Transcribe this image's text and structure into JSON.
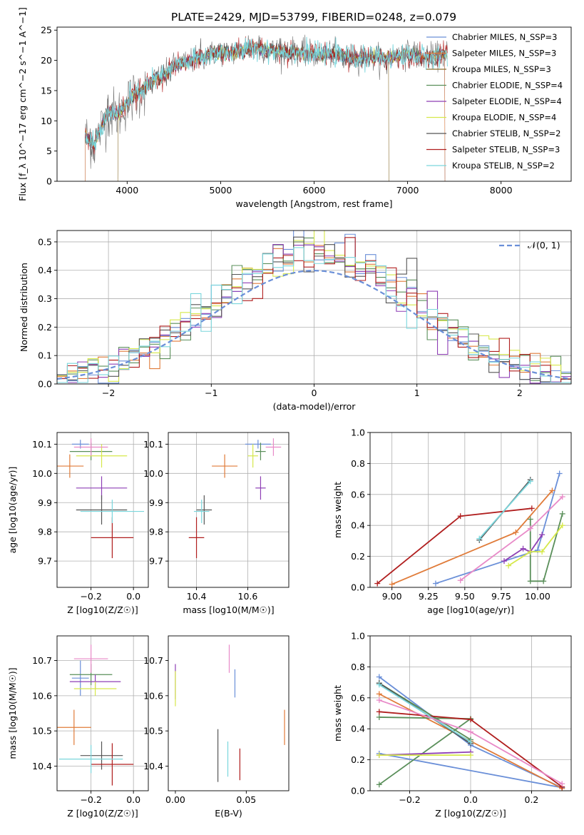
{
  "figure_title": "PLATE=2429, MJD=53799, FIBERID=0248, z=0.079",
  "model_colors": {
    "Chabrier MILES": "#6a8fd8",
    "Salpeter MILES": "#e07b39",
    "Kroupa MILES": "#8a6d2e",
    "Chabrier ELODIE": "#5a8f5a",
    "Salpeter ELODIE": "#8e3fb5",
    "Kroupa ELODIE": "#d6e84a",
    "Chabrier STELIB": "#555555",
    "Salpeter STELIB": "#b01e1e",
    "Kroupa STELIB": "#7ad6dc",
    "Pink": "#e88ac8"
  },
  "chart_data": [
    {
      "id": "spectrum",
      "type": "line",
      "xlabel": "wavelength [Angstrom, rest frame]",
      "ylabel": "Flux [f_λ 10^−17 erg cm^−2 s^−1 A^−1]",
      "xlim": [
        3250,
        8750
      ],
      "ylim": [
        0,
        25.5
      ],
      "xticks": [
        4000,
        5000,
        6000,
        7000,
        8000
      ],
      "yticks": [
        0,
        5,
        10,
        15,
        20,
        25
      ],
      "grid": false,
      "legend_position": "right",
      "continuum_x": [
        3550,
        3650,
        3700,
        3800,
        3900,
        4000,
        4100,
        4200,
        4300,
        4400,
        4500,
        4600,
        4700,
        4800,
        4900,
        5000,
        5100,
        5200,
        5300,
        5400,
        5600,
        5800,
        6000,
        6200,
        6400,
        6600,
        6800,
        7000,
        7200,
        7400
      ],
      "continuum_y": [
        7.5,
        6.0,
        8.0,
        11.5,
        11.0,
        13.0,
        14.5,
        15.5,
        17.0,
        17.5,
        19.0,
        19.5,
        20.0,
        20.5,
        21.0,
        21.5,
        21.0,
        21.5,
        22.0,
        22.0,
        21.5,
        21.5,
        21.0,
        21.0,
        20.5,
        20.5,
        20.5,
        21.0,
        20.5,
        21.0
      ],
      "legend": [
        {
          "label": "Chabrier MILES, N_SSP=3",
          "color_key": "Chabrier MILES"
        },
        {
          "label": "Salpeter MILES, N_SSP=3",
          "color_key": "Salpeter MILES"
        },
        {
          "label": "Kroupa MILES, N_SSP=3",
          "color_key": "Kroupa MILES"
        },
        {
          "label": "Chabrier ELODIE, N_SSP=4",
          "color_key": "Chabrier ELODIE"
        },
        {
          "label": "Salpeter ELODIE, N_SSP=4",
          "color_key": "Salpeter ELODIE"
        },
        {
          "label": "Kroupa ELODIE, N_SSP=4",
          "color_key": "Kroupa ELODIE"
        },
        {
          "label": "Chabrier STELIB, N_SSP=2",
          "color_key": "Chabrier STELIB"
        },
        {
          "label": "Salpeter STELIB, N_SSP=3",
          "color_key": "Salpeter STELIB"
        },
        {
          "label": "Kroupa STELIB, N_SSP=2",
          "color_key": "Kroupa STELIB"
        }
      ]
    },
    {
      "id": "residuals",
      "type": "line",
      "xlabel": "(data-model)/error",
      "ylabel": "Normed distribution",
      "xlim": [
        -2.5,
        2.5
      ],
      "ylim": [
        0,
        0.54
      ],
      "xticks": [
        -2,
        -1,
        0,
        1,
        2
      ],
      "yticks": [
        0.0,
        0.1,
        0.2,
        0.3,
        0.4,
        0.5
      ],
      "grid": true,
      "legend_position": "top-right",
      "legend_label": "𝒩(0, 1)",
      "bin_width": 0.1,
      "bin_start": -2.5
    },
    {
      "id": "age_vs_Z",
      "type": "scatter",
      "xlabel": "Z [log10(Z/Z☉)]",
      "ylabel": "age  [log10(age/yr)]",
      "xlim": [
        -0.36,
        0.07
      ],
      "ylim": [
        9.61,
        10.14
      ],
      "xticks": [
        -0.2,
        0.0
      ],
      "yticks": [
        9.7,
        9.8,
        9.9,
        10.0,
        10.1
      ],
      "grid": true,
      "points": [
        {
          "color_key": "Chabrier MILES",
          "x": -0.25,
          "xerr": 0.04,
          "y": 10.1,
          "yerr": 0.015
        },
        {
          "color_key": "Salpeter MILES",
          "x": -0.3,
          "xerr": 0.065,
          "y": 10.025,
          "yerr": 0.04
        },
        {
          "color_key": "Chabrier ELODIE",
          "x": -0.2,
          "xerr": 0.1,
          "y": 10.075,
          "yerr": 0.03
        },
        {
          "color_key": "Salpeter ELODIE",
          "x": -0.15,
          "xerr": 0.12,
          "y": 9.95,
          "yerr": 0.04
        },
        {
          "color_key": "Kroupa ELODIE",
          "x": -0.15,
          "xerr": 0.12,
          "y": 10.06,
          "yerr": 0.04
        },
        {
          "color_key": "Chabrier STELIB",
          "x": -0.15,
          "xerr": 0.12,
          "y": 9.875,
          "yerr": 0.05
        },
        {
          "color_key": "Salpeter STELIB",
          "x": -0.1,
          "xerr": 0.1,
          "y": 9.78,
          "yerr": 0.07
        },
        {
          "color_key": "Kroupa STELIB",
          "x": -0.1,
          "xerr": 0.15,
          "y": 9.87,
          "yerr": 0.04
        },
        {
          "color_key": "Pink",
          "x": -0.2,
          "xerr": 0.08,
          "y": 10.09,
          "yerr": 0.03
        }
      ]
    },
    {
      "id": "age_vs_mass",
      "type": "scatter",
      "xlabel": "mass [log10(M/M☉)]",
      "ylabel": "",
      "xlim": [
        10.29,
        10.76
      ],
      "ylim": [
        9.61,
        10.14
      ],
      "xticks": [
        10.4,
        10.6
      ],
      "yticks": [
        9.7,
        9.8,
        9.9,
        10.0,
        10.1
      ],
      "grid": true,
      "points": [
        {
          "color_key": "Chabrier MILES",
          "x": 10.64,
          "xerr": 0.05,
          "y": 10.1,
          "yerr": 0.015
        },
        {
          "color_key": "Salpeter MILES",
          "x": 10.51,
          "xerr": 0.05,
          "y": 10.025,
          "yerr": 0.04
        },
        {
          "color_key": "Chabrier ELODIE",
          "x": 10.65,
          "xerr": 0.02,
          "y": 10.075,
          "yerr": 0.03
        },
        {
          "color_key": "Salpeter ELODIE",
          "x": 10.65,
          "xerr": 0.02,
          "y": 9.95,
          "yerr": 0.04
        },
        {
          "color_key": "Kroupa ELODIE",
          "x": 10.62,
          "xerr": 0.02,
          "y": 10.06,
          "yerr": 0.04
        },
        {
          "color_key": "Chabrier STELIB",
          "x": 10.43,
          "xerr": 0.03,
          "y": 9.875,
          "yerr": 0.05
        },
        {
          "color_key": "Salpeter STELIB",
          "x": 10.4,
          "xerr": 0.03,
          "y": 9.78,
          "yerr": 0.07
        },
        {
          "color_key": "Kroupa STELIB",
          "x": 10.42,
          "xerr": 0.03,
          "y": 9.87,
          "yerr": 0.04
        },
        {
          "color_key": "Pink",
          "x": 10.7,
          "xerr": 0.03,
          "y": 10.09,
          "yerr": 0.03
        }
      ]
    },
    {
      "id": "weight_vs_age",
      "type": "line",
      "xlabel": "age  [log10(age/yr)]",
      "ylabel": "mass weight",
      "xlim": [
        8.85,
        10.23
      ],
      "ylim": [
        0,
        1.0
      ],
      "xticks": [
        9.0,
        9.25,
        9.5,
        9.75,
        10.0
      ],
      "yticks": [
        0.0,
        0.2,
        0.4,
        0.6,
        0.8,
        1.0
      ],
      "grid": true,
      "series": [
        {
          "color_key": "Chabrier MILES",
          "x": [
            9.3,
            10.0,
            10.15
          ],
          "y": [
            0.025,
            0.24,
            0.735
          ]
        },
        {
          "color_key": "Salpeter MILES",
          "x": [
            9.0,
            9.85,
            10.1
          ],
          "y": [
            0.02,
            0.355,
            0.625
          ]
        },
        {
          "color_key": "Chabrier ELODIE",
          "x": [
            9.95,
            9.95,
            10.04,
            10.17
          ],
          "y": [
            0.44,
            0.04,
            0.04,
            0.475
          ]
        },
        {
          "color_key": "Salpeter ELODIE",
          "x": [
            9.77,
            9.9,
            9.95,
            10.03
          ],
          "y": [
            0.17,
            0.25,
            0.23,
            0.34
          ]
        },
        {
          "color_key": "Kroupa ELODIE",
          "x": [
            9.8,
            9.95,
            10.03,
            10.17
          ],
          "y": [
            0.14,
            0.23,
            0.23,
            0.4
          ]
        },
        {
          "color_key": "Chabrier STELIB",
          "x": [
            9.6,
            9.95
          ],
          "y": [
            0.305,
            0.695
          ]
        },
        {
          "color_key": "Salpeter STELIB",
          "x": [
            8.9,
            9.47,
            9.96
          ],
          "y": [
            0.025,
            0.46,
            0.51
          ]
        },
        {
          "color_key": "Kroupa STELIB",
          "x": [
            9.6,
            9.95
          ],
          "y": [
            0.315,
            0.685
          ]
        },
        {
          "color_key": "Pink",
          "x": [
            9.47,
            9.95,
            10.17
          ],
          "y": [
            0.045,
            0.38,
            0.585
          ]
        }
      ]
    },
    {
      "id": "mass_vs_Z",
      "type": "scatter",
      "xlabel": "Z [log10(Z/Z☉)]",
      "ylabel": "mass [log10(M/M☉)]",
      "xlim": [
        -0.36,
        0.07
      ],
      "ylim": [
        10.33,
        10.77
      ],
      "xticks": [
        -0.2,
        0.0
      ],
      "yticks": [
        10.4,
        10.5,
        10.6,
        10.7
      ],
      "grid": true,
      "points": [
        {
          "color_key": "Chabrier MILES",
          "x": -0.25,
          "xerr": 0.04,
          "y": 10.65,
          "yerr": 0.05
        },
        {
          "color_key": "Salpeter MILES",
          "x": -0.28,
          "xerr": 0.08,
          "y": 10.51,
          "yerr": 0.05
        },
        {
          "color_key": "Chabrier ELODIE",
          "x": -0.2,
          "xerr": 0.1,
          "y": 10.66,
          "yerr": 0.03
        },
        {
          "color_key": "Salpeter ELODIE",
          "x": -0.18,
          "xerr": 0.12,
          "y": 10.64,
          "yerr": 0.02
        },
        {
          "color_key": "Kroupa ELODIE",
          "x": -0.18,
          "xerr": 0.1,
          "y": 10.62,
          "yerr": 0.02
        },
        {
          "color_key": "Chabrier STELIB",
          "x": -0.15,
          "xerr": 0.1,
          "y": 10.43,
          "yerr": 0.04
        },
        {
          "color_key": "Salpeter STELIB",
          "x": -0.1,
          "xerr": 0.1,
          "y": 10.405,
          "yerr": 0.06
        },
        {
          "color_key": "Kroupa STELIB",
          "x": -0.2,
          "xerr": 0.15,
          "y": 10.42,
          "yerr": 0.04
        },
        {
          "color_key": "Pink",
          "x": -0.2,
          "xerr": 0.08,
          "y": 10.705,
          "yerr": 0.04
        }
      ]
    },
    {
      "id": "mass_vs_ebv",
      "type": "scatter",
      "xlabel": "E(B-V)",
      "ylabel": "",
      "xlim": [
        -0.005,
        0.08
      ],
      "ylim": [
        10.33,
        10.77
      ],
      "xticks": [
        0.0,
        0.05
      ],
      "yticks": [
        10.4,
        10.5,
        10.6,
        10.7
      ],
      "grid": false,
      "points": [
        {
          "color_key": "Salpeter ELODIE",
          "x": 0.0,
          "y": 10.64,
          "yerr": 0.05
        },
        {
          "color_key": "Kroupa ELODIE",
          "x": 0.0,
          "y": 10.62,
          "yerr": 0.05
        },
        {
          "color_key": "Chabrier STELIB",
          "x": 0.03,
          "y": 10.43,
          "yerr": 0.075
        },
        {
          "color_key": "Pink",
          "x": 0.038,
          "y": 10.705,
          "yerr": 0.04
        },
        {
          "color_key": "Kroupa STELIB",
          "x": 0.037,
          "y": 10.42,
          "yerr": 0.05
        },
        {
          "color_key": "Chabrier MILES",
          "x": 0.042,
          "y": 10.635,
          "yerr": 0.04
        },
        {
          "color_key": "Salpeter STELIB",
          "x": 0.0455,
          "y": 10.405,
          "yerr": 0.045
        },
        {
          "color_key": "Salpeter MILES",
          "x": 0.077,
          "y": 10.51,
          "yerr": 0.05
        }
      ]
    },
    {
      "id": "weight_vs_Z",
      "type": "line",
      "xlabel": "Z [log10(Z/Z☉)]",
      "ylabel": "mass weight",
      "xlim": [
        -0.33,
        0.33
      ],
      "ylim": [
        0,
        1.0
      ],
      "xticks": [
        -0.2,
        0.0,
        0.2
      ],
      "yticks": [
        0.0,
        0.2,
        0.4,
        0.6,
        0.8,
        1.0
      ],
      "grid": true,
      "series": [
        {
          "color_key": "Chabrier MILES",
          "x": [
            -0.3,
            0.0,
            0.3
          ],
          "y": [
            0.735,
            0.295,
            0.02
          ]
        },
        {
          "color_key": "Chabrier MILES",
          "x": [
            -0.3,
            0.3
          ],
          "y": [
            0.24,
            0.02
          ]
        },
        {
          "color_key": "Salpeter MILES",
          "x": [
            -0.3,
            0.0,
            0.3
          ],
          "y": [
            0.625,
            0.32,
            0.015
          ]
        },
        {
          "color_key": "Chabrier ELODIE",
          "x": [
            -0.3,
            0.0,
            -0.3
          ],
          "y": [
            0.04,
            0.465,
            0.475
          ]
        },
        {
          "color_key": "Chabrier ELODIE",
          "x": [
            -0.3,
            0.0
          ],
          "y": [
            0.695,
            0.33
          ]
        },
        {
          "color_key": "Salpeter ELODIE",
          "x": [
            -0.3,
            0.0
          ],
          "y": [
            0.23,
            0.25
          ]
        },
        {
          "color_key": "Kroupa ELODIE",
          "x": [
            -0.3,
            0.0
          ],
          "y": [
            0.23,
            0.23
          ]
        },
        {
          "color_key": "Chabrier STELIB",
          "x": [
            -0.3,
            0.0
          ],
          "y": [
            0.695,
            0.305
          ]
        },
        {
          "color_key": "Salpeter STELIB",
          "x": [
            -0.3,
            0.0,
            0.3
          ],
          "y": [
            0.51,
            0.46,
            0.025
          ]
        },
        {
          "color_key": "Kroupa STELIB",
          "x": [
            -0.3,
            0.0
          ],
          "y": [
            0.685,
            0.315
          ]
        },
        {
          "color_key": "Pink",
          "x": [
            -0.3,
            0.0,
            0.3
          ],
          "y": [
            0.585,
            0.38,
            0.045
          ]
        }
      ]
    }
  ]
}
